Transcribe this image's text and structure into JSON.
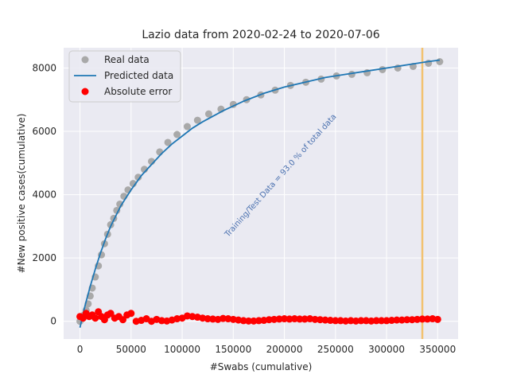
{
  "chart_data": {
    "type": "scatter",
    "title": "Lazio data  from 2020-02-24 to 2020-07-06",
    "xlabel": "#Swabs (cumulative)",
    "ylabel": "#New positive cases(cumulative)",
    "xlim": [
      -16000,
      370000
    ],
    "ylim": [
      -560,
      8640
    ],
    "xticks": [
      0,
      50000,
      100000,
      150000,
      200000,
      250000,
      300000,
      350000
    ],
    "yticks": [
      0,
      2000,
      4000,
      6000,
      8000
    ],
    "grid": true,
    "legend_position": "upper left",
    "legend": [
      "Real data",
      "Predicted data",
      "Absolute error"
    ],
    "annotation": "Training/Test Data = 93.0 % of total data",
    "split_x": 335000,
    "colors": {
      "real": "#a9a9a9",
      "predicted": "#1f77b4",
      "error": "#ff0000",
      "split_line": "#f2c270",
      "background": "#eaeaf2",
      "annotation": "#4c72b0"
    },
    "series": [
      {
        "name": "Real data",
        "style": "marker",
        "x": [
          0,
          2000,
          4000,
          6000,
          8000,
          10000,
          12000,
          15000,
          18000,
          21000,
          24000,
          27000,
          30000,
          33000,
          36000,
          39000,
          43000,
          47000,
          52000,
          57000,
          63000,
          70000,
          78000,
          86000,
          95000,
          105000,
          115000,
          126000,
          138000,
          150000,
          163000,
          177000,
          191000,
          206000,
          221000,
          236000,
          251000,
          266000,
          281000,
          296000,
          311000,
          326000,
          341000,
          352000
        ],
        "y": [
          0,
          80,
          200,
          350,
          550,
          800,
          1050,
          1400,
          1750,
          2100,
          2450,
          2750,
          3050,
          3250,
          3500,
          3700,
          3950,
          4150,
          4350,
          4550,
          4800,
          5050,
          5350,
          5650,
          5900,
          6150,
          6350,
          6550,
          6700,
          6850,
          7000,
          7150,
          7300,
          7450,
          7550,
          7650,
          7750,
          7800,
          7850,
          7950,
          8000,
          8050,
          8150,
          8200
        ]
      },
      {
        "name": "Predicted data",
        "style": "line",
        "x": [
          0,
          5000,
          10000,
          15000,
          20000,
          25000,
          30000,
          40000,
          50000,
          60000,
          70000,
          80000,
          90000,
          100000,
          110000,
          120000,
          140000,
          160000,
          180000,
          200000,
          220000,
          240000,
          260000,
          280000,
          300000,
          320000,
          340000,
          352000
        ],
        "y": [
          -200,
          500,
          1100,
          1650,
          2150,
          2600,
          3000,
          3650,
          4150,
          4600,
          4950,
          5300,
          5600,
          5850,
          6100,
          6300,
          6650,
          6950,
          7200,
          7400,
          7550,
          7700,
          7800,
          7900,
          8000,
          8100,
          8200,
          8250
        ]
      },
      {
        "name": "Absolute error",
        "style": "marker",
        "x": [
          0,
          3000,
          6000,
          9000,
          12000,
          15000,
          18000,
          21000,
          24000,
          27000,
          30000,
          34000,
          38000,
          42000,
          46000,
          50000,
          55000,
          60000,
          65000,
          70000,
          75000,
          80000,
          85000,
          90000,
          95000,
          100000,
          105000,
          110000,
          115000,
          120000,
          125000,
          130000,
          135000,
          140000,
          145000,
          150000,
          155000,
          160000,
          165000,
          170000,
          175000,
          180000,
          185000,
          190000,
          195000,
          200000,
          205000,
          210000,
          215000,
          220000,
          225000,
          230000,
          235000,
          240000,
          245000,
          250000,
          255000,
          260000,
          265000,
          270000,
          275000,
          280000,
          285000,
          290000,
          295000,
          300000,
          305000,
          310000,
          315000,
          320000,
          325000,
          330000,
          335000,
          340000,
          345000,
          350000
        ],
        "y": [
          150,
          100,
          250,
          150,
          200,
          100,
          300,
          150,
          50,
          200,
          250,
          100,
          150,
          50,
          200,
          250,
          0,
          30,
          80,
          0,
          60,
          20,
          10,
          40,
          80,
          100,
          170,
          150,
          130,
          100,
          80,
          70,
          60,
          90,
          80,
          60,
          40,
          20,
          10,
          10,
          20,
          30,
          50,
          60,
          70,
          80,
          70,
          80,
          70,
          70,
          80,
          60,
          50,
          40,
          30,
          20,
          20,
          10,
          20,
          10,
          20,
          20,
          10,
          20,
          20,
          20,
          30,
          40,
          40,
          50,
          50,
          60,
          70,
          70,
          80,
          60
        ]
      }
    ]
  }
}
